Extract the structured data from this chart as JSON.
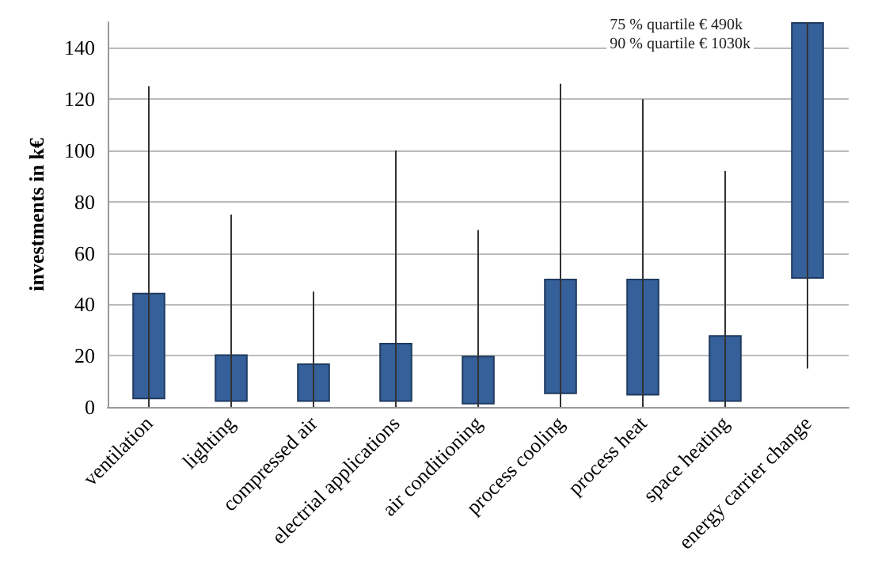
{
  "chart_data": {
    "type": "bar",
    "ylabel": "investments in k€",
    "categories": [
      "ventilation",
      "lighting",
      "compressed air",
      "electrial applications",
      "air conditioning",
      "process cooling",
      "process heat",
      "space heating",
      "energy carrier change"
    ],
    "base": [
      3,
      2,
      2,
      2,
      1,
      5,
      4.5,
      2,
      50
    ],
    "values": [
      41.5,
      18.5,
      15,
      23,
      19,
      45,
      45.5,
      26,
      100
    ],
    "errors": [
      [
        0,
        125
      ],
      [
        0,
        75
      ],
      [
        0,
        45
      ],
      [
        0,
        100
      ],
      [
        0,
        69
      ],
      [
        0,
        126
      ],
      [
        0,
        120
      ],
      [
        0,
        92
      ],
      [
        15,
        150
      ]
    ],
    "color": "#35609a",
    "ylim": [
      0,
      150
    ],
    "yticks": [
      0,
      20,
      40,
      60,
      80,
      100,
      120,
      140
    ],
    "grid": "y",
    "annotations": [
      "75 % quartile € 490k\n90 % quartile € 1030k"
    ]
  }
}
